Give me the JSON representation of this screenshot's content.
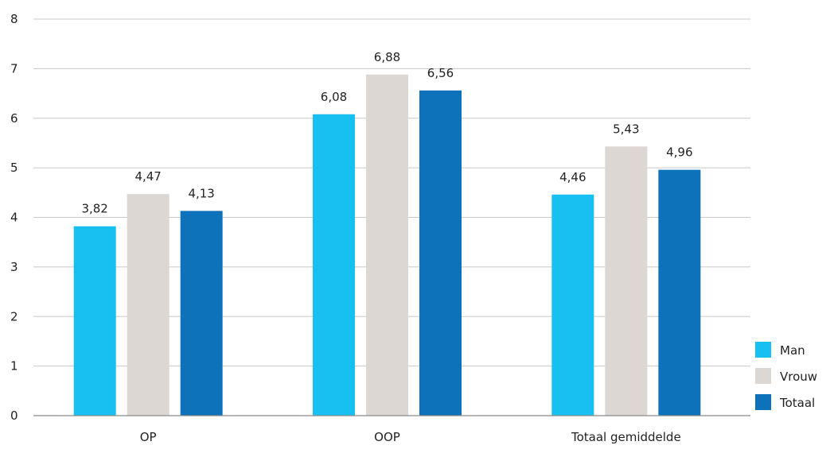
{
  "chart_data": {
    "type": "bar",
    "categories": [
      "OP",
      "OOP",
      "Totaal gemiddelde"
    ],
    "series": [
      {
        "name": "Man",
        "values": [
          3.82,
          6.08,
          4.46
        ],
        "labels": [
          "3,82",
          "6,08",
          "4,46"
        ],
        "color": "#17c0f0"
      },
      {
        "name": "Vrouw",
        "values": [
          4.47,
          6.88,
          5.43
        ],
        "labels": [
          "4,47",
          "6,88",
          "5,43"
        ],
        "color": "#ddd7d3"
      },
      {
        "name": "Totaal",
        "values": [
          4.13,
          6.56,
          4.96
        ],
        "labels": [
          "4,13",
          "6,56",
          "4,96"
        ],
        "color": "#0e72bb"
      }
    ],
    "ylim": [
      0,
      8
    ],
    "yticks": [
      "0",
      "1",
      "2",
      "3",
      "4",
      "5",
      "6",
      "7",
      "8"
    ],
    "grid": true,
    "legend_position": "bottom-right",
    "title": "",
    "xlabel": "",
    "ylabel": ""
  }
}
